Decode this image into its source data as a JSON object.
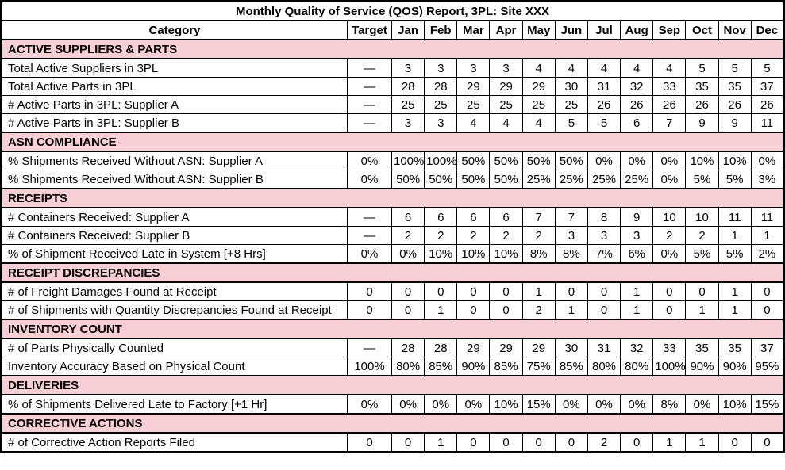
{
  "title": "Monthly Quality of Service (QOS) Report, 3PL: Site XXX",
  "header": {
    "category": "Category",
    "target": "Target",
    "months": [
      "Jan",
      "Feb",
      "Mar",
      "Apr",
      "May",
      "Jun",
      "Jul",
      "Aug",
      "Sep",
      "Oct",
      "Nov",
      "Dec"
    ]
  },
  "colors": {
    "section_bg": "#F7CFD5",
    "border": "#000000",
    "row_bg": "#FFFFFF",
    "text": "#000000"
  },
  "sections": [
    {
      "name": "ACTIVE SUPPLIERS & PARTS",
      "rows": [
        {
          "label": "Total Active Suppliers in 3PL",
          "target": "—",
          "values": [
            "3",
            "3",
            "3",
            "3",
            "4",
            "4",
            "4",
            "4",
            "4",
            "5",
            "5",
            "5"
          ]
        },
        {
          "label": "Total Active Parts in 3PL",
          "target": "—",
          "values": [
            "28",
            "28",
            "29",
            "29",
            "29",
            "30",
            "31",
            "32",
            "33",
            "35",
            "35",
            "37"
          ]
        },
        {
          "label": "# Active Parts in 3PL: Supplier A",
          "target": "—",
          "values": [
            "25",
            "25",
            "25",
            "25",
            "25",
            "25",
            "26",
            "26",
            "26",
            "26",
            "26",
            "26"
          ]
        },
        {
          "label": "# Active Parts in 3PL: Supplier B",
          "target": "—",
          "values": [
            "3",
            "3",
            "4",
            "4",
            "4",
            "5",
            "5",
            "6",
            "7",
            "9",
            "9",
            "11"
          ]
        }
      ]
    },
    {
      "name": "ASN COMPLIANCE",
      "rows": [
        {
          "label": "% Shipments Received Without ASN: Supplier A",
          "target": "0%",
          "values": [
            "100%",
            "100%",
            "50%",
            "50%",
            "50%",
            "50%",
            "0%",
            "0%",
            "0%",
            "10%",
            "10%",
            "0%"
          ]
        },
        {
          "label": "% Shipments Received Without ASN: Supplier B",
          "target": "0%",
          "values": [
            "50%",
            "50%",
            "50%",
            "50%",
            "25%",
            "25%",
            "25%",
            "25%",
            "0%",
            "5%",
            "5%",
            "3%"
          ]
        }
      ]
    },
    {
      "name": "RECEIPTS",
      "rows": [
        {
          "label": "# Containers Received: Supplier A",
          "target": "—",
          "values": [
            "6",
            "6",
            "6",
            "6",
            "7",
            "7",
            "8",
            "9",
            "10",
            "10",
            "11",
            "11"
          ]
        },
        {
          "label": "# Containers Received: Supplier B",
          "target": "—",
          "values": [
            "2",
            "2",
            "2",
            "2",
            "2",
            "3",
            "3",
            "3",
            "2",
            "2",
            "1",
            "1"
          ]
        },
        {
          "label": "% of Shipment Received Late in System [+8 Hrs]",
          "target": "0%",
          "values": [
            "0%",
            "10%",
            "10%",
            "10%",
            "8%",
            "8%",
            "7%",
            "6%",
            "0%",
            "5%",
            "5%",
            "2%"
          ]
        }
      ]
    },
    {
      "name": "RECEIPT DISCREPANCIES",
      "rows": [
        {
          "label": "# of Freight Damages Found at Receipt",
          "target": "0",
          "values": [
            "0",
            "0",
            "0",
            "0",
            "1",
            "0",
            "0",
            "1",
            "0",
            "0",
            "1",
            "0"
          ]
        },
        {
          "label": "# of Shipments with Quantity Discrepancies Found at Receipt",
          "target": "0",
          "values": [
            "0",
            "1",
            "0",
            "0",
            "2",
            "1",
            "0",
            "1",
            "0",
            "1",
            "1",
            "0"
          ]
        }
      ]
    },
    {
      "name": "INVENTORY COUNT",
      "rows": [
        {
          "label": "# of Parts Physically Counted",
          "target": "—",
          "values": [
            "28",
            "28",
            "29",
            "29",
            "29",
            "30",
            "31",
            "32",
            "33",
            "35",
            "35",
            "37"
          ]
        },
        {
          "label": "Inventory Accuracy Based on Physical Count",
          "target": "100%",
          "values": [
            "80%",
            "85%",
            "90%",
            "85%",
            "75%",
            "85%",
            "80%",
            "80%",
            "100%",
            "90%",
            "90%",
            "95%"
          ]
        }
      ]
    },
    {
      "name": "DELIVERIES",
      "rows": [
        {
          "label": "% of Shipments Delivered Late to Factory [+1 Hr]",
          "target": "0%",
          "values": [
            "0%",
            "0%",
            "0%",
            "10%",
            "15%",
            "0%",
            "0%",
            "0%",
            "8%",
            "0%",
            "10%",
            "15%"
          ]
        }
      ]
    },
    {
      "name": "CORRECTIVE ACTIONS",
      "rows": [
        {
          "label": "# of Corrective Action Reports Filed",
          "target": "0",
          "values": [
            "0",
            "1",
            "0",
            "0",
            "0",
            "0",
            "2",
            "0",
            "1",
            "1",
            "0",
            "0"
          ]
        }
      ]
    }
  ]
}
